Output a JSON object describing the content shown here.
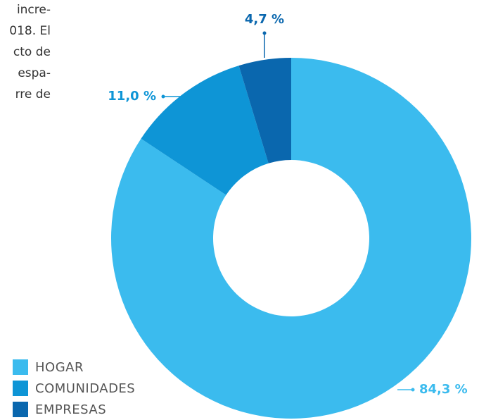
{
  "body_text": [
    "incre-",
    "018. El",
    "cto de",
    "espa-",
    "rre de"
  ],
  "chart_data": {
    "type": "donut",
    "categories": [
      "HOGAR",
      "COMUNIDADES",
      "EMPRESAS"
    ],
    "values": [
      84.3,
      11.0,
      4.7
    ],
    "value_labels": [
      "84,3 %",
      "11,0 %",
      "4,7 %"
    ],
    "colors": [
      "#3bbbee",
      "#0e95d6",
      "#0a67ae"
    ],
    "legend": "bottom-left"
  }
}
